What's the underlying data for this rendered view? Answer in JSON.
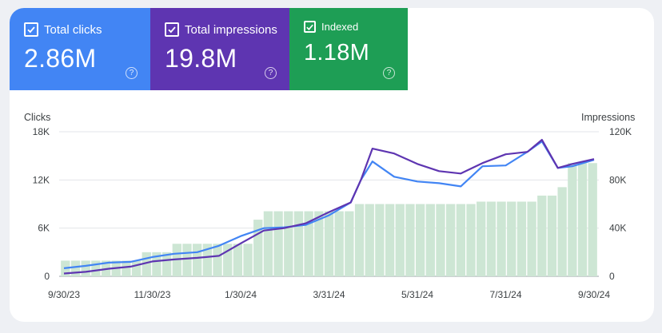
{
  "metrics": {
    "clicks": {
      "label": "Total clicks",
      "value": "2.86M",
      "color": "#4285f4"
    },
    "impressions": {
      "label": "Total impressions",
      "value": "19.8M",
      "color": "#5e35b1"
    },
    "indexed": {
      "label": "Indexed",
      "value": "1.18M",
      "color": "#1e9e55"
    },
    "help_icon": "help-circle-icon",
    "checkbox_icon": "checkbox-checked-icon"
  },
  "chart_data": {
    "type": "line",
    "left_axis_label": "Clicks",
    "right_axis_label": "Impressions",
    "x_ticks": [
      "9/30/23",
      "11/30/23",
      "1/30/24",
      "3/31/24",
      "5/31/24",
      "7/31/24",
      "9/30/24"
    ],
    "x_range": [
      "2023-09-30",
      "2024-09-30"
    ],
    "y_left_ticks": [
      "0",
      "6K",
      "12K",
      "18K"
    ],
    "y_left_range": [
      0,
      18000
    ],
    "y_right_ticks": [
      "0",
      "40K",
      "80K",
      "120K"
    ],
    "y_right_range": [
      0,
      120000
    ],
    "grid": true,
    "series": [
      {
        "name": "Indexed",
        "type": "bar",
        "color": "#cde6d4",
        "x": [
          "2023-10-01",
          "2023-10-08",
          "2023-10-15",
          "2023-10-22",
          "2023-10-29",
          "2023-11-05",
          "2023-11-12",
          "2023-11-19",
          "2023-11-26",
          "2023-12-03",
          "2023-12-10",
          "2023-12-17",
          "2023-12-24",
          "2023-12-31",
          "2024-01-07",
          "2024-01-14",
          "2024-01-21",
          "2024-01-28",
          "2024-02-04",
          "2024-02-11",
          "2024-02-18",
          "2024-02-25",
          "2024-03-03",
          "2024-03-10",
          "2024-03-17",
          "2024-03-24",
          "2024-03-31",
          "2024-04-07",
          "2024-04-14",
          "2024-04-21",
          "2024-04-28",
          "2024-05-05",
          "2024-05-12",
          "2024-05-19",
          "2024-05-26",
          "2024-06-02",
          "2024-06-09",
          "2024-06-16",
          "2024-06-23",
          "2024-06-30",
          "2024-07-07",
          "2024-07-14",
          "2024-07-21",
          "2024-07-28",
          "2024-08-04",
          "2024-08-11",
          "2024-08-18",
          "2024-08-25",
          "2024-09-01",
          "2024-09-08",
          "2024-09-15",
          "2024-09-22",
          "2024-09-29"
        ],
        "values": [
          13000,
          13000,
          13000,
          13000,
          13000,
          13000,
          13000,
          13000,
          20000,
          20000,
          20000,
          27000,
          27000,
          27000,
          27000,
          27000,
          27000,
          27000,
          27000,
          47000,
          54000,
          54000,
          54000,
          54000,
          54000,
          54000,
          54000,
          54000,
          54000,
          60000,
          60000,
          60000,
          60000,
          60000,
          60000,
          60000,
          60000,
          60000,
          60000,
          60000,
          60000,
          62000,
          62000,
          62000,
          62000,
          62000,
          62000,
          67000,
          67000,
          74000,
          94000,
          94000,
          94000
        ]
      },
      {
        "name": "Clicks",
        "type": "line",
        "axis": "left",
        "color": "#4285f4",
        "x": [
          "2023-09-30",
          "2023-10-15",
          "2023-10-31",
          "2023-11-15",
          "2023-11-30",
          "2023-12-15",
          "2023-12-31",
          "2024-01-15",
          "2024-01-30",
          "2024-02-15",
          "2024-02-29",
          "2024-03-15",
          "2024-03-31",
          "2024-04-15",
          "2024-04-22",
          "2024-04-30",
          "2024-05-15",
          "2024-05-31",
          "2024-06-15",
          "2024-06-30",
          "2024-07-15",
          "2024-07-31",
          "2024-08-15",
          "2024-08-25",
          "2024-09-05",
          "2024-09-15",
          "2024-09-30"
        ],
        "values": [
          1000,
          1300,
          1700,
          1800,
          2400,
          2800,
          3000,
          3800,
          5000,
          6000,
          6100,
          6400,
          7600,
          9200,
          12000,
          14300,
          12400,
          11800,
          11600,
          11200,
          13700,
          13800,
          15500,
          16800,
          13500,
          13700,
          14500
        ]
      },
      {
        "name": "Impressions",
        "type": "line",
        "axis": "right",
        "color": "#5e35b1",
        "x": [
          "2023-09-30",
          "2023-10-15",
          "2023-10-31",
          "2023-11-15",
          "2023-11-30",
          "2023-12-15",
          "2023-12-31",
          "2024-01-15",
          "2024-01-30",
          "2024-02-15",
          "2024-02-29",
          "2024-03-15",
          "2024-03-31",
          "2024-04-15",
          "2024-04-22",
          "2024-04-30",
          "2024-05-15",
          "2024-05-31",
          "2024-06-15",
          "2024-06-30",
          "2024-07-15",
          "2024-07-31",
          "2024-08-15",
          "2024-08-25",
          "2024-09-05",
          "2024-09-15",
          "2024-09-30"
        ],
        "values": [
          2300,
          3700,
          6300,
          8000,
          12300,
          14000,
          15300,
          17000,
          27300,
          38000,
          40000,
          44000,
          53300,
          61300,
          80000,
          106000,
          102000,
          93300,
          87300,
          85300,
          94000,
          101300,
          103300,
          113300,
          90000,
          93300,
          97300
        ]
      }
    ]
  }
}
